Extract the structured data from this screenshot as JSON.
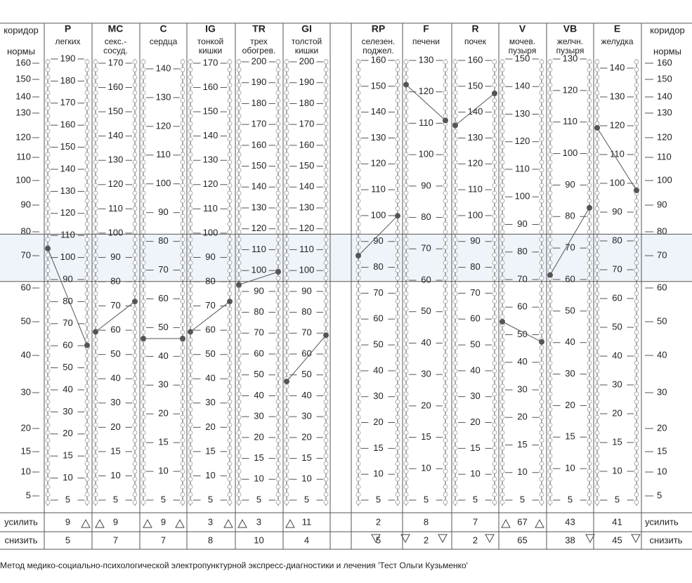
{
  "header": {
    "left": [
      "коридор",
      "нормы"
    ],
    "right": [
      "коридор",
      "нормы"
    ]
  },
  "scale": {
    "ticks": [
      160,
      150,
      140,
      130,
      120,
      110,
      100,
      90,
      80,
      70,
      60,
      50,
      40,
      30,
      20,
      15,
      10,
      5
    ],
    "corridor": [
      62,
      79
    ]
  },
  "columns": [
    {
      "code": "P",
      "name": [
        "легких"
      ],
      "labels": [
        190,
        180,
        170,
        160,
        150,
        140,
        130,
        120,
        110,
        100,
        90,
        80,
        70,
        60,
        50,
        40,
        30,
        20,
        15,
        10,
        5
      ],
      "left": 73,
      "right": 43,
      "increase": 9,
      "decrease": 5
    },
    {
      "code": "MC",
      "name": [
        "секс.-",
        "сосуд."
      ],
      "labels": [
        170,
        160,
        150,
        140,
        130,
        120,
        110,
        100,
        90,
        80,
        70,
        60,
        50,
        40,
        30,
        20,
        15,
        10,
        5
      ],
      "left": 47,
      "right": 56,
      "increase": 9,
      "decrease": 7
    },
    {
      "code": "C",
      "name": [
        "сердца"
      ],
      "labels": [
        140,
        130,
        120,
        110,
        100,
        90,
        80,
        70,
        60,
        50,
        40,
        30,
        20,
        15,
        10,
        5
      ],
      "left": 45,
      "right": 45,
      "increase": 9,
      "decrease": 7
    },
    {
      "code": "IG",
      "name": [
        "тонкой",
        "кишки"
      ],
      "labels": [
        170,
        160,
        150,
        140,
        130,
        120,
        110,
        100,
        90,
        80,
        70,
        60,
        50,
        40,
        30,
        20,
        15,
        10,
        5
      ],
      "left": 47,
      "right": 56,
      "increase": 3,
      "decrease": 8
    },
    {
      "code": "TR",
      "name": [
        "трех",
        "обогрев."
      ],
      "labels": [
        200,
        190,
        180,
        170,
        160,
        150,
        140,
        130,
        120,
        110,
        100,
        90,
        80,
        70,
        60,
        50,
        40,
        30,
        20,
        15,
        10,
        5
      ],
      "left": 61,
      "right": 65,
      "increase": 3,
      "decrease": 10
    },
    {
      "code": "GI",
      "name": [
        "толстой",
        "кишки"
      ],
      "labels": [
        200,
        190,
        180,
        170,
        160,
        150,
        140,
        130,
        120,
        110,
        100,
        90,
        80,
        70,
        60,
        50,
        40,
        30,
        20,
        15,
        10,
        5
      ],
      "left": 33,
      "right": 46,
      "increase": 11,
      "decrease": 4
    },
    {
      "code": "RP",
      "name": [
        "селезен.",
        "поджел."
      ],
      "labels": [
        160,
        150,
        140,
        130,
        120,
        110,
        100,
        90,
        80,
        70,
        60,
        50,
        40,
        30,
        20,
        15,
        10,
        5
      ],
      "left": 70,
      "right": 86,
      "increase": 2,
      "decrease": 5
    },
    {
      "code": "F",
      "name": [
        "печени"
      ],
      "labels": [
        130,
        120,
        110,
        100,
        90,
        80,
        70,
        60,
        50,
        40,
        30,
        20,
        15,
        10,
        5
      ],
      "left": 147,
      "right": 127,
      "increase": 8,
      "decrease": 2
    },
    {
      "code": "R",
      "name": [
        "почек"
      ],
      "labels": [
        160,
        150,
        140,
        130,
        120,
        110,
        100,
        90,
        80,
        70,
        60,
        50,
        40,
        30,
        20,
        15,
        10,
        5
      ],
      "left": 125,
      "right": 142,
      "increase": 7,
      "decrease": 2
    },
    {
      "code": "V",
      "name": [
        "мочев.",
        "пузыря"
      ],
      "labels": [
        150,
        140,
        130,
        120,
        110,
        100,
        90,
        80,
        70,
        60,
        50,
        40,
        30,
        20,
        15,
        10,
        5
      ],
      "left": 50,
      "right": 44,
      "increase": 67,
      "decrease": 65
    },
    {
      "code": "VB",
      "name": [
        "желчн.",
        "пузыря"
      ],
      "labels": [
        130,
        120,
        110,
        100,
        90,
        80,
        70,
        60,
        50,
        40,
        30,
        20,
        15,
        10,
        5
      ],
      "left": 64,
      "right": 89,
      "increase": 43,
      "decrease": 38
    },
    {
      "code": "E",
      "name": [
        "желудка"
      ],
      "labels": [
        140,
        130,
        120,
        110,
        100,
        90,
        80,
        70,
        60,
        50,
        40,
        30,
        20,
        15,
        10,
        5
      ],
      "left": 124,
      "right": 96,
      "increase": 41,
      "decrease": 45
    }
  ],
  "rows": {
    "increase": "усилить",
    "decrease": "снизить"
  },
  "footer": "Метод медико-социально-психологической электропунктурной экспресс-диагностики и лечения 'Тест Ольги Кузьменко'"
}
